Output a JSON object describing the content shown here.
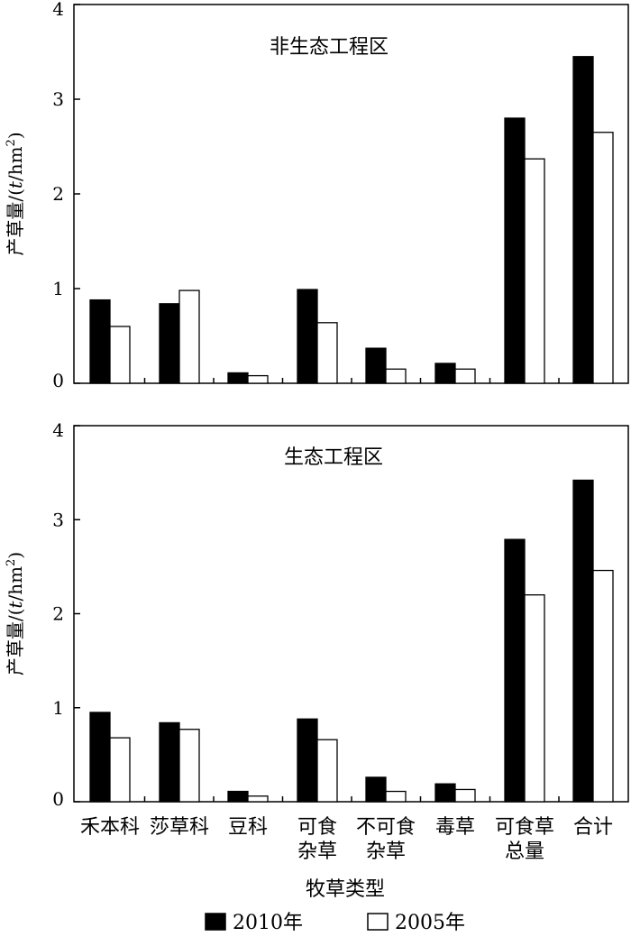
{
  "chart_data": [
    {
      "type": "bar",
      "title": "非生态工程区",
      "ylabel": "产草量/(t/hm²)",
      "ylabel_parts": {
        "prefix": "产草量/(",
        "unit_italic": "t",
        "unit_rest": "/hm",
        "sup": "2",
        "suffix": ")"
      },
      "ylim": [
        0,
        4
      ],
      "yticks": [
        0,
        1,
        2,
        3,
        4
      ],
      "categories": [
        [
          "禾本科"
        ],
        [
          "莎草科"
        ],
        [
          "豆科"
        ],
        [
          "可食",
          "杂草"
        ],
        [
          "不可食",
          "杂草"
        ],
        [
          "毒草"
        ],
        [
          "可食草",
          "总量"
        ],
        [
          "合计"
        ]
      ],
      "series": [
        {
          "name": "2010年",
          "fill": "#000000",
          "values": [
            0.88,
            0.84,
            0.11,
            0.99,
            0.37,
            0.21,
            2.8,
            3.45
          ]
        },
        {
          "name": "2005年",
          "fill": "#ffffff",
          "values": [
            0.6,
            0.98,
            0.08,
            0.64,
            0.15,
            0.15,
            2.37,
            2.65
          ]
        }
      ],
      "grid": false
    },
    {
      "type": "bar",
      "title": "生态工程区",
      "ylabel": "产草量/(t/hm²)",
      "ylabel_parts": {
        "prefix": "产草量/(",
        "unit_italic": "t",
        "unit_rest": "/hm",
        "sup": "2",
        "suffix": ")"
      },
      "ylim": [
        0,
        4
      ],
      "yticks": [
        0,
        1,
        2,
        3,
        4
      ],
      "categories": [
        [
          "禾本科"
        ],
        [
          "莎草科"
        ],
        [
          "豆科"
        ],
        [
          "可食",
          "杂草"
        ],
        [
          "不可食",
          "杂草"
        ],
        [
          "毒草"
        ],
        [
          "可食草",
          "总量"
        ],
        [
          "合计"
        ]
      ],
      "series": [
        {
          "name": "2010年",
          "fill": "#000000",
          "values": [
            0.95,
            0.84,
            0.11,
            0.88,
            0.26,
            0.19,
            2.79,
            3.42
          ]
        },
        {
          "name": "2005年",
          "fill": "#ffffff",
          "values": [
            0.68,
            0.77,
            0.06,
            0.66,
            0.11,
            0.13,
            2.2,
            2.46
          ]
        }
      ],
      "grid": false
    }
  ],
  "xlabel": "牧草类型",
  "legend": {
    "placement": "bottom-center",
    "items": [
      {
        "label": "2010年",
        "fill": "#000000"
      },
      {
        "label": "2005年",
        "fill": "#ffffff"
      }
    ]
  }
}
